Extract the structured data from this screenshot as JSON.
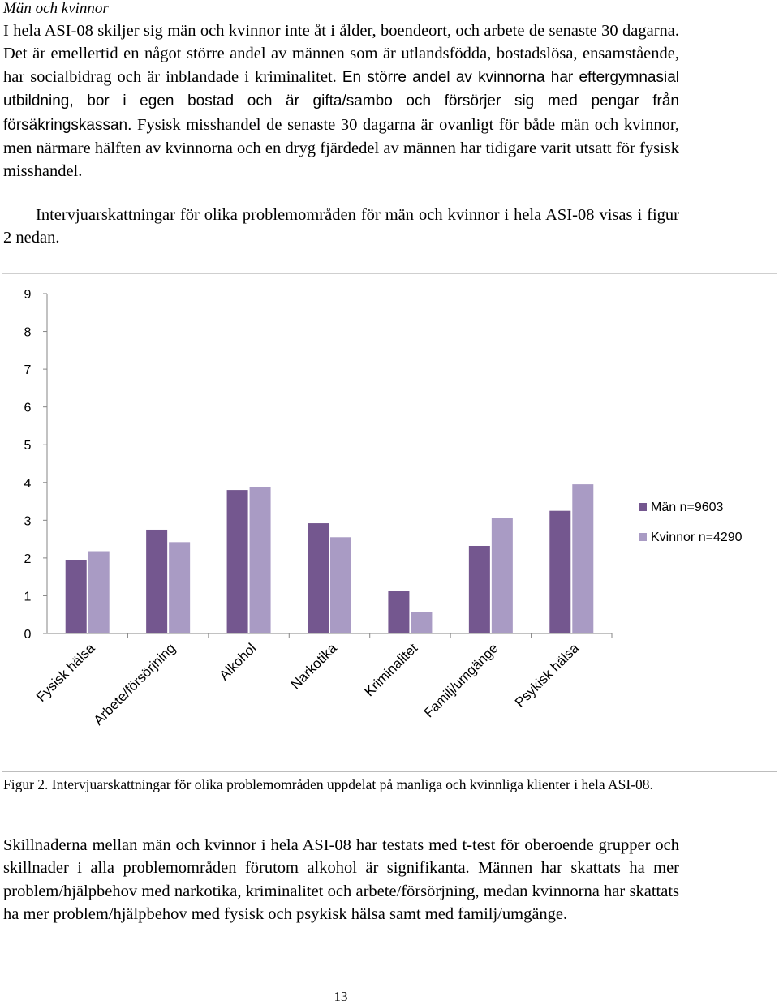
{
  "section_heading": "Män och kvinnor",
  "paragraph1_part_a": "I hela ASI-08 skiljer sig män och kvinnor inte åt i ålder, boendeort, och arbete de senaste 30 dagarna. Det är emellertid en något större andel av männen som är utlandsfödda, bostadslösa, ensamstående, har socialbidrag och är inblandade i kriminalitet.",
  "paragraph1_part_b": "En större andel av kvinnorna har eftergymnasial utbildning, bor i egen bostad och är gifta/sambo och försörjer sig med pengar från försäkringskassan.",
  "paragraph1_part_c": "Fysisk misshandel de senaste 30 dagarna är ovanligt för både män och kvinnor, men närmare hälften av kvinnorna och en dryg fjärdedel av männen har tidigare varit utsatt för fysisk misshandel.",
  "paragraph2": "Intervjuarskattningar för olika problemområden för män och kvinnor i hela ASI-08 visas i figur 2 nedan.",
  "caption": "Figur 2. Intervjuarskattningar för olika problemområden uppdelat på manliga och kvinnliga klienter i hela ASI-08.",
  "paragraph3": "Skillnaderna mellan män och kvinnor i hela ASI-08 har testats med t-test för oberoende grupper och skillnader i alla problemområden förutom alkohol är signifikanta. Männen har skattats ha mer problem/hjälpbehov med narkotika, kriminalitet och arbete/försörjning, medan kvinnorna har skattats ha mer problem/hjälpbehov med fysisk och psykisk hälsa samt med familj/umgänge.",
  "page_number": "13",
  "colors": {
    "men": "#74578f",
    "women": "#a99bc4",
    "axis": "#868686"
  },
  "chart_data": {
    "type": "bar",
    "categories": [
      "Fysisk hälsa",
      "Arbete/försörjning",
      "Alkohol",
      "Narkotika",
      "Kriminalitet",
      "Familj/umgänge",
      "Psykisk hälsa"
    ],
    "series": [
      {
        "name": "Män n=9603",
        "values": [
          1.95,
          2.75,
          3.8,
          2.92,
          1.12,
          2.32,
          3.25
        ]
      },
      {
        "name": "Kvinnor n=4290",
        "values": [
          2.18,
          2.42,
          3.88,
          2.55,
          0.57,
          3.07,
          3.95
        ]
      }
    ],
    "y_ticks": [
      "0",
      "1",
      "2",
      "3",
      "4",
      "5",
      "6",
      "7",
      "8",
      "9"
    ],
    "ylim": [
      0,
      9
    ],
    "grid": false,
    "legend_position": "right"
  }
}
